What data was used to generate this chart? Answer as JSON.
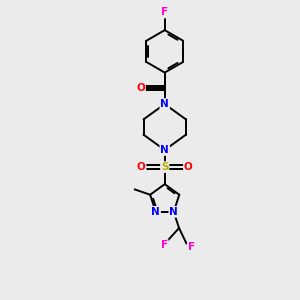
{
  "background_color": "#ebebeb",
  "atom_colors": {
    "C": "#000000",
    "N": "#0000ff",
    "O": "#ff0000",
    "S": "#bbaa00",
    "F": "#ff00cc"
  },
  "lw": 1.4,
  "fs": 7.5,
  "xlim": [
    0,
    10
  ],
  "ylim": [
    0,
    10
  ]
}
